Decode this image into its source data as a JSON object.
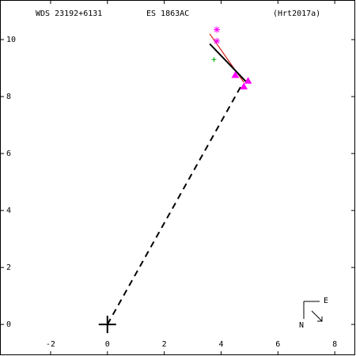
{
  "chart_data": {
    "type": "scatter",
    "header": {
      "id": "WDS 23192+6131",
      "name": "ES 1863AC",
      "reference": "(Hrt2017a)"
    },
    "xlim": [
      -3.78,
      8.72
    ],
    "ylim": [
      -1.08,
      11.39
    ],
    "xticks": [
      -2,
      0,
      2,
      4,
      6,
      8
    ],
    "yticks": [
      0,
      2,
      4,
      6,
      8,
      10
    ],
    "lines": [
      {
        "color": "#000000",
        "style": "dashed",
        "x": [
          0,
          4.75
        ],
        "y": [
          0,
          8.45
        ]
      },
      {
        "color": "#cc0000",
        "style": "thin",
        "x": [
          3.6,
          4.8
        ],
        "y": [
          10.2,
          8.5
        ]
      },
      {
        "color": "#000000",
        "style": "solid",
        "x": [
          3.6,
          4.9
        ],
        "y": [
          9.85,
          8.5
        ]
      }
    ],
    "points": [
      {
        "color": "#ff00ff",
        "marker": "asterisk",
        "x": [
          3.85,
          3.85
        ],
        "y": [
          10.35,
          9.95
        ]
      },
      {
        "color": "#ff00ff",
        "marker": "triangle",
        "x": [
          4.5,
          4.95,
          4.8
        ],
        "y": [
          8.75,
          8.55,
          8.35
        ]
      },
      {
        "color": "#00aa00",
        "marker": "plus",
        "x": [
          3.75
        ],
        "y": [
          9.3
        ]
      },
      {
        "color": "#000000",
        "marker": "cross",
        "x": [
          0
        ],
        "y": [
          0
        ]
      }
    ],
    "compass": {
      "east": "E",
      "north": "N"
    }
  }
}
